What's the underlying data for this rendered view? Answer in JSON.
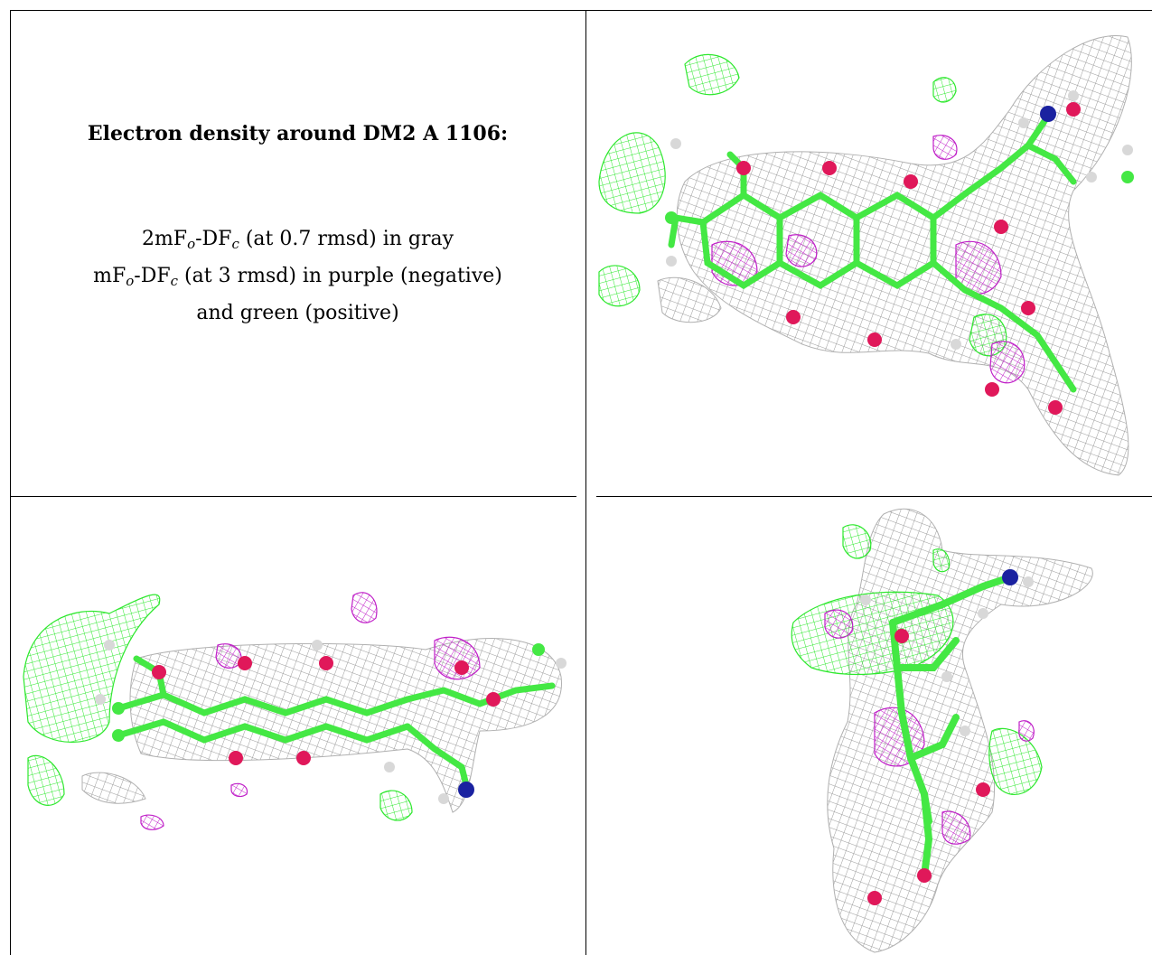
{
  "caption": {
    "title": "Electron density around DM2 A 1106:",
    "line1": {
      "prefix": "2mF",
      "sub_o": "o",
      "mid": "-DF",
      "sub_c": "c",
      "suffix": " (at 0.7 rmsd) in gray"
    },
    "line2": {
      "prefix": "mF",
      "sub_o": "o",
      "mid": "-DF",
      "sub_c": "c",
      "suffix": " (at 3 rmsd) in purple (negative)"
    },
    "line3": "and green (positive)"
  },
  "colors": {
    "density_2fofc": "#9a9a9a",
    "density_positive": "#2ee82e",
    "density_negative": "#c020c8",
    "carbon": "#44e844",
    "oxygen": "#e0185a",
    "nitrogen": "#1a22a0",
    "hydrogen": "#d8d8d8",
    "grid_line": "#000000"
  },
  "panels": [
    {
      "name": "view-front",
      "icon": "electron-density-mesh"
    },
    {
      "name": "view-side",
      "icon": "electron-density-mesh"
    },
    {
      "name": "view-end",
      "icon": "electron-density-mesh"
    }
  ]
}
